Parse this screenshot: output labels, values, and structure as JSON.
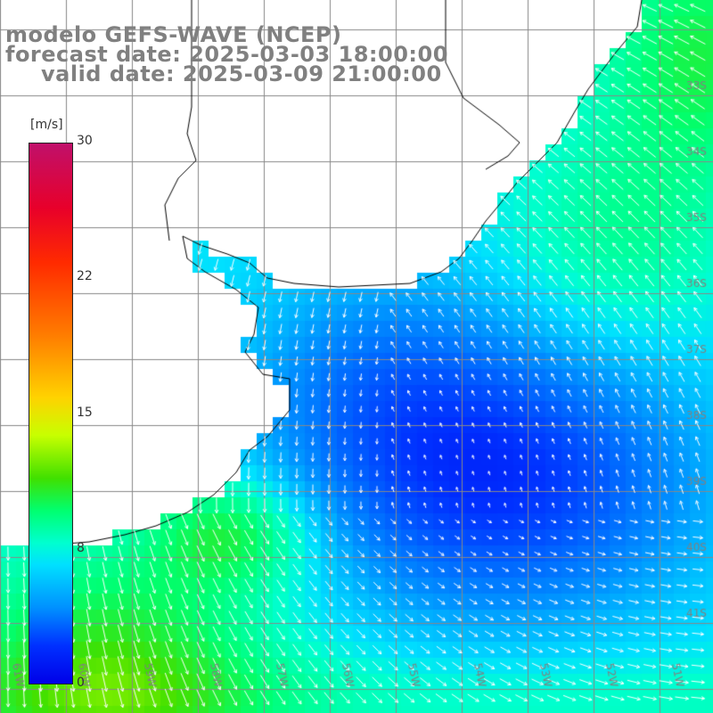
{
  "title": {
    "line1": "modelo GEFS-WAVE (NCEP)",
    "line2": "forecast date: 2025-03-03 18:00:00",
    "line3": "valid date: 2025-03-09 21:00:00"
  },
  "colorbar": {
    "unit": "[m/s]",
    "ticks": [
      "30",
      "22",
      "15",
      "8",
      "0"
    ],
    "colors": [
      "#c0106a",
      "#ff0000",
      "#ff8000",
      "#ffff00",
      "#00ff00",
      "#00ffff",
      "#0090ff",
      "#0000ff"
    ]
  },
  "lat_labels": [
    "33S",
    "34S",
    "35S",
    "36S",
    "37S",
    "38S",
    "39S",
    "40S",
    "41S"
  ],
  "lon_labels": [
    "61W",
    "60W",
    "59W",
    "58W",
    "57W",
    "56W",
    "55W",
    "54W",
    "53W",
    "52W",
    "51W"
  ],
  "colors": {
    "land": "#ffffff",
    "grid": "#888888",
    "coast": "#000000",
    "arrow": "#ffffff",
    "label": "#808080"
  }
}
